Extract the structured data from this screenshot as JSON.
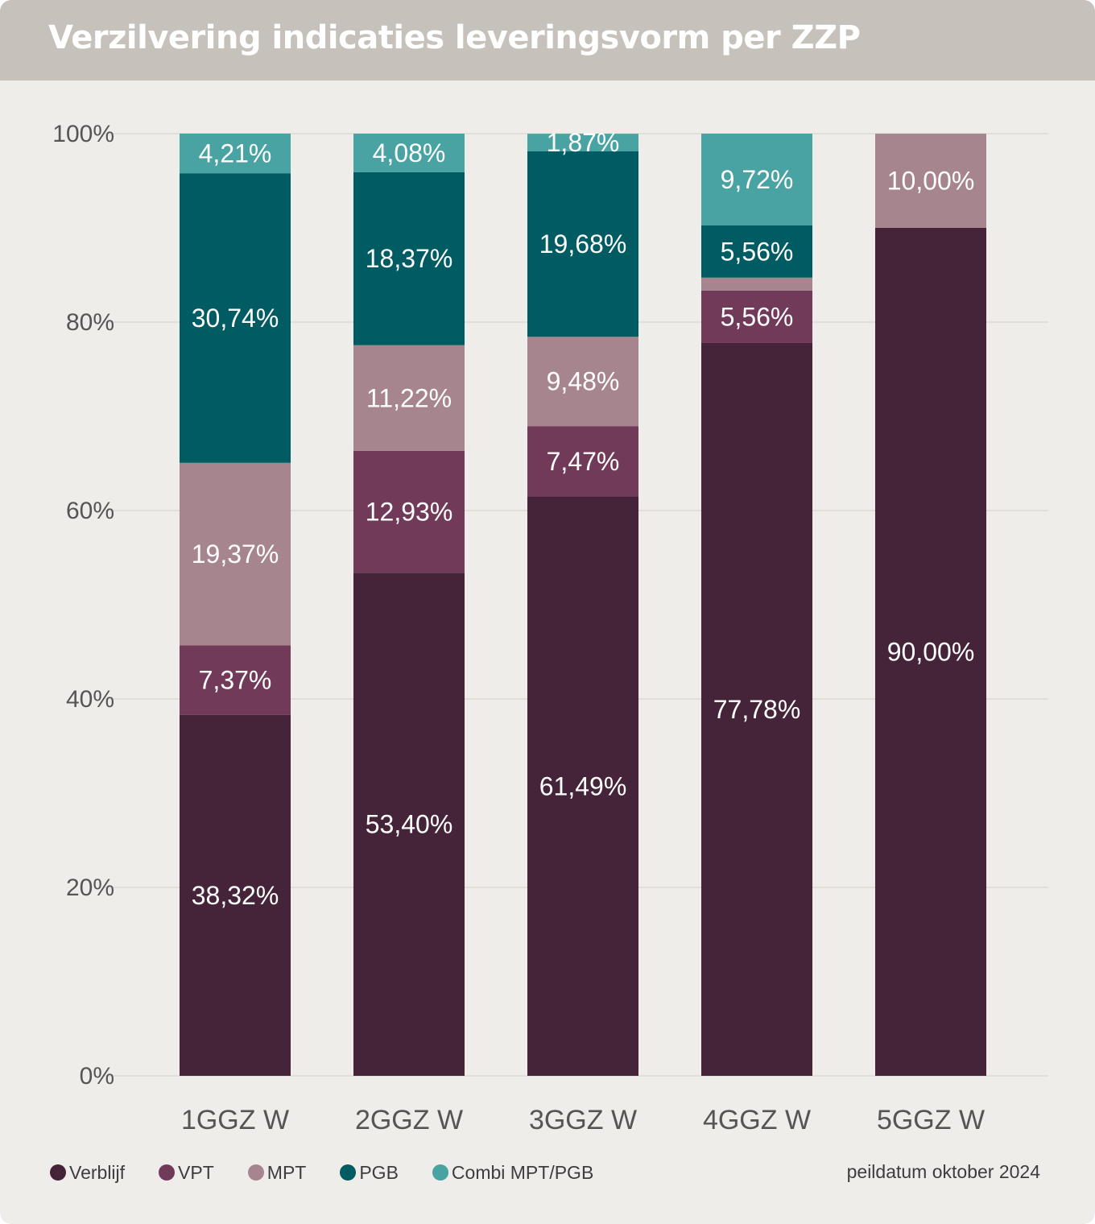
{
  "header": {
    "title": "Verzilvering indicaties leveringsvorm per ZZP"
  },
  "footnote": "peildatum oktober 2024",
  "colors": {
    "Verblijf": "#45243a",
    "VPT": "#713a59",
    "MPT": "#a6858f",
    "PGB": "#005c62",
    "Combi MPT/PGB": "#48a3a2",
    "background": "#efede9",
    "header": "#c6c1ba"
  },
  "chart_data": {
    "type": "bar",
    "stacked": true,
    "title": "Verzilvering indicaties leveringsvorm per ZZP",
    "xlabel": "",
    "ylabel": "",
    "ylim": [
      0,
      100
    ],
    "y_ticks": [
      "0%",
      "20%",
      "40%",
      "60%",
      "80%",
      "100%"
    ],
    "grid": true,
    "legend_position": "bottom-left",
    "categories": [
      "1GGZ W",
      "2GGZ W",
      "3GGZ W",
      "4GGZ W",
      "5GGZ W"
    ],
    "series": [
      {
        "name": "Verblijf",
        "values": [
          38.32,
          53.4,
          61.49,
          77.78,
          90.0
        ],
        "labels": [
          "38,32%",
          "53,40%",
          "61,49%",
          "77,78%",
          "90,00%"
        ]
      },
      {
        "name": "VPT",
        "values": [
          7.37,
          12.93,
          7.47,
          5.56,
          0
        ],
        "labels": [
          "7,37%",
          "12,93%",
          "7,47%",
          "5,56%",
          ""
        ]
      },
      {
        "name": "MPT",
        "values": [
          19.37,
          11.22,
          9.48,
          1.38,
          10.0
        ],
        "labels": [
          "19,37%",
          "11,22%",
          "9,48%",
          "",
          "10,00%"
        ]
      },
      {
        "name": "PGB",
        "values": [
          30.74,
          18.37,
          19.68,
          5.56,
          0
        ],
        "labels": [
          "30,74%",
          "18,37%",
          "19,68%",
          "5,56%",
          ""
        ]
      },
      {
        "name": "Combi MPT/PGB",
        "values": [
          4.21,
          4.08,
          1.87,
          9.72,
          0
        ],
        "labels": [
          "4,21%",
          "4,08%",
          "1,87%",
          "9,72%",
          ""
        ]
      }
    ]
  }
}
